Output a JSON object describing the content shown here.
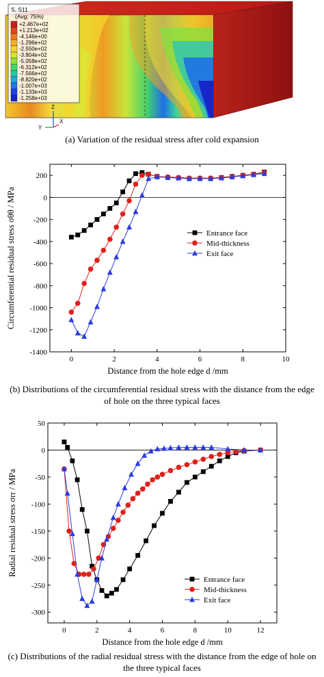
{
  "fem": {
    "legend_title": "S, S11",
    "legend_subtitle": "(Avg: 75%)",
    "legend_values": [
      "+2.467e+02",
      "+1.213e+02",
      "-4.146e+00",
      "-1.296e+02",
      "-2.550e+02",
      "-3.804e+02",
      "-5.058e+02",
      "-6.312e+02",
      "-7.566e+02",
      "-8.820e+02",
      "-1.007e+03",
      "-1.133e+03",
      "-1.258e+03"
    ],
    "legend_colors": [
      "#c81e1e",
      "#e0461a",
      "#ee7a1e",
      "#f7ad2a",
      "#f4d62c",
      "#cfe82f",
      "#8fe43a",
      "#44d868",
      "#24c8a6",
      "#20a6de",
      "#2273ea",
      "#1e3ee8",
      "#1626c8"
    ],
    "axes": {
      "z": "Z",
      "y": "Y",
      "x": "X"
    },
    "caption": "(a) Variation of the residual stress after cold expansion"
  },
  "charts": [
    {
      "caption": "(b) Distributions of the circumferential residual stress with the distance from the edge of hole on the three typical faces",
      "chart_data": {
        "type": "line",
        "xlabel": "Distance from the hole edge d /mm",
        "ylabel": "Circumferential residual stress σθθ / MPa",
        "xlim": [
          -1,
          10
        ],
        "ylim": [
          -1400,
          300
        ],
        "xticks": [
          0,
          2,
          4,
          6,
          8,
          10
        ],
        "yticks": [
          -1400,
          -1200,
          -1000,
          -800,
          -600,
          -400,
          -200,
          0,
          200
        ],
        "zero_line": true,
        "legend_position": "middle-right",
        "series": [
          {
            "name": "Entrance face",
            "marker": "square",
            "color": "#000000",
            "x": [
              0,
              0.3,
              0.6,
              0.9,
              1.2,
              1.5,
              1.8,
              2.1,
              2.4,
              2.7,
              3.0,
              3.3,
              3.6,
              4.0,
              4.5,
              5.0,
              5.5,
              6.0,
              6.5,
              7.0,
              7.5,
              8.0,
              8.5,
              9.0
            ],
            "y": [
              -360,
              -340,
              -300,
              -250,
              -200,
              -150,
              -100,
              -50,
              50,
              150,
              215,
              225,
              210,
              190,
              180,
              175,
              170,
              170,
              170,
              180,
              190,
              200,
              210,
              230
            ]
          },
          {
            "name": "Mid-thickness",
            "marker": "circle",
            "color": "#e0201b",
            "x": [
              0,
              0.3,
              0.6,
              0.9,
              1.2,
              1.5,
              1.8,
              2.1,
              2.4,
              2.7,
              3.0,
              3.3,
              3.6,
              4.0,
              4.5,
              5.0,
              5.5,
              6.0,
              6.5,
              7.0,
              7.5,
              8.0,
              8.5,
              9.0
            ],
            "y": [
              -1040,
              -960,
              -780,
              -650,
              -570,
              -480,
              -380,
              -270,
              -150,
              -30,
              120,
              200,
              210,
              190,
              185,
              180,
              175,
              175,
              175,
              180,
              190,
              200,
              210,
              225
            ]
          },
          {
            "name": "Exit face",
            "marker": "triangle",
            "color": "#2b3be0",
            "x": [
              0,
              0.3,
              0.6,
              0.9,
              1.2,
              1.5,
              1.8,
              2.1,
              2.4,
              2.7,
              3.0,
              3.3,
              3.6,
              4.0,
              4.5,
              5.0,
              5.5,
              6.0,
              6.5,
              7.0,
              7.5,
              8.0,
              8.5,
              9.0
            ],
            "y": [
              -1110,
              -1230,
              -1260,
              -1130,
              -990,
              -830,
              -680,
              -540,
              -400,
              -270,
              -130,
              20,
              170,
              185,
              180,
              175,
              170,
              170,
              170,
              175,
              185,
              195,
              205,
              215
            ]
          }
        ]
      }
    },
    {
      "caption": "(c) Distributions of the radial residual stress with the distance from the edge of hole on the three typical faces",
      "chart_data": {
        "type": "line",
        "xlabel": "Distance from the hole edge d /mm",
        "ylabel": "Radial residual stress σrr / MPa",
        "xlim": [
          -1,
          13
        ],
        "ylim": [
          -320,
          50
        ],
        "xticks": [
          0,
          2,
          4,
          6,
          8,
          10,
          12
        ],
        "yticks": [
          -300,
          -250,
          -200,
          -150,
          -100,
          -50,
          0,
          50
        ],
        "zero_line": true,
        "legend_position": "bottom-right",
        "series": [
          {
            "name": "Entrance face",
            "marker": "square",
            "color": "#000000",
            "x": [
              0,
              0.2,
              0.5,
              0.8,
              1.1,
              1.4,
              1.7,
              2.0,
              2.3,
              2.6,
              2.9,
              3.2,
              3.6,
              4.0,
              4.5,
              5.0,
              5.5,
              6.0,
              6.5,
              7.0,
              7.5,
              8.0,
              8.5,
              9.0,
              9.5,
              10.0,
              10.5,
              11.0,
              12.0
            ],
            "y": [
              15,
              5,
              -20,
              -55,
              -110,
              -150,
              -215,
              -240,
              -260,
              -270,
              -265,
              -258,
              -240,
              -220,
              -195,
              -168,
              -140,
              -117,
              -95,
              -78,
              -60,
              -50,
              -40,
              -30,
              -20,
              -12,
              -5,
              -2,
              0
            ]
          },
          {
            "name": "Mid-thickness",
            "marker": "circle",
            "color": "#e0201b",
            "x": [
              0,
              0.3,
              0.6,
              0.9,
              1.2,
              1.5,
              1.8,
              2.1,
              2.4,
              2.7,
              3.0,
              3.3,
              3.6,
              3.9,
              4.2,
              4.5,
              4.8,
              5.1,
              5.4,
              5.7,
              6.0,
              6.5,
              7.0,
              7.5,
              8.0,
              8.5,
              9.0,
              9.5,
              10.0,
              10.5,
              11.0,
              12.0
            ],
            "y": [
              -35,
              -150,
              -210,
              -230,
              -230,
              -230,
              -220,
              -200,
              -175,
              -160,
              -145,
              -130,
              -115,
              -102,
              -90,
              -80,
              -72,
              -63,
              -55,
              -50,
              -45,
              -38,
              -32,
              -27,
              -22,
              -17,
              -12,
              -8,
              -5,
              -3,
              -1,
              0
            ]
          },
          {
            "name": "Exit face",
            "marker": "triangle",
            "color": "#2b3be0",
            "x": [
              0,
              0.2,
              0.5,
              0.8,
              1.1,
              1.4,
              1.7,
              2.0,
              2.3,
              2.6,
              3.0,
              3.3,
              3.7,
              4.1,
              4.5,
              4.9,
              5.3,
              5.7,
              6.1,
              6.5,
              7.0,
              7.5,
              8.0,
              8.5,
              9.0,
              10.0,
              11.0,
              12.0
            ],
            "y": [
              -35,
              -80,
              -155,
              -230,
              -275,
              -288,
              -280,
              -240,
              -200,
              -165,
              -125,
              -100,
              -70,
              -45,
              -25,
              -10,
              -2,
              2,
              3,
              4,
              5,
              5,
              5,
              5,
              5,
              2,
              0,
              0
            ]
          }
        ]
      }
    }
  ]
}
